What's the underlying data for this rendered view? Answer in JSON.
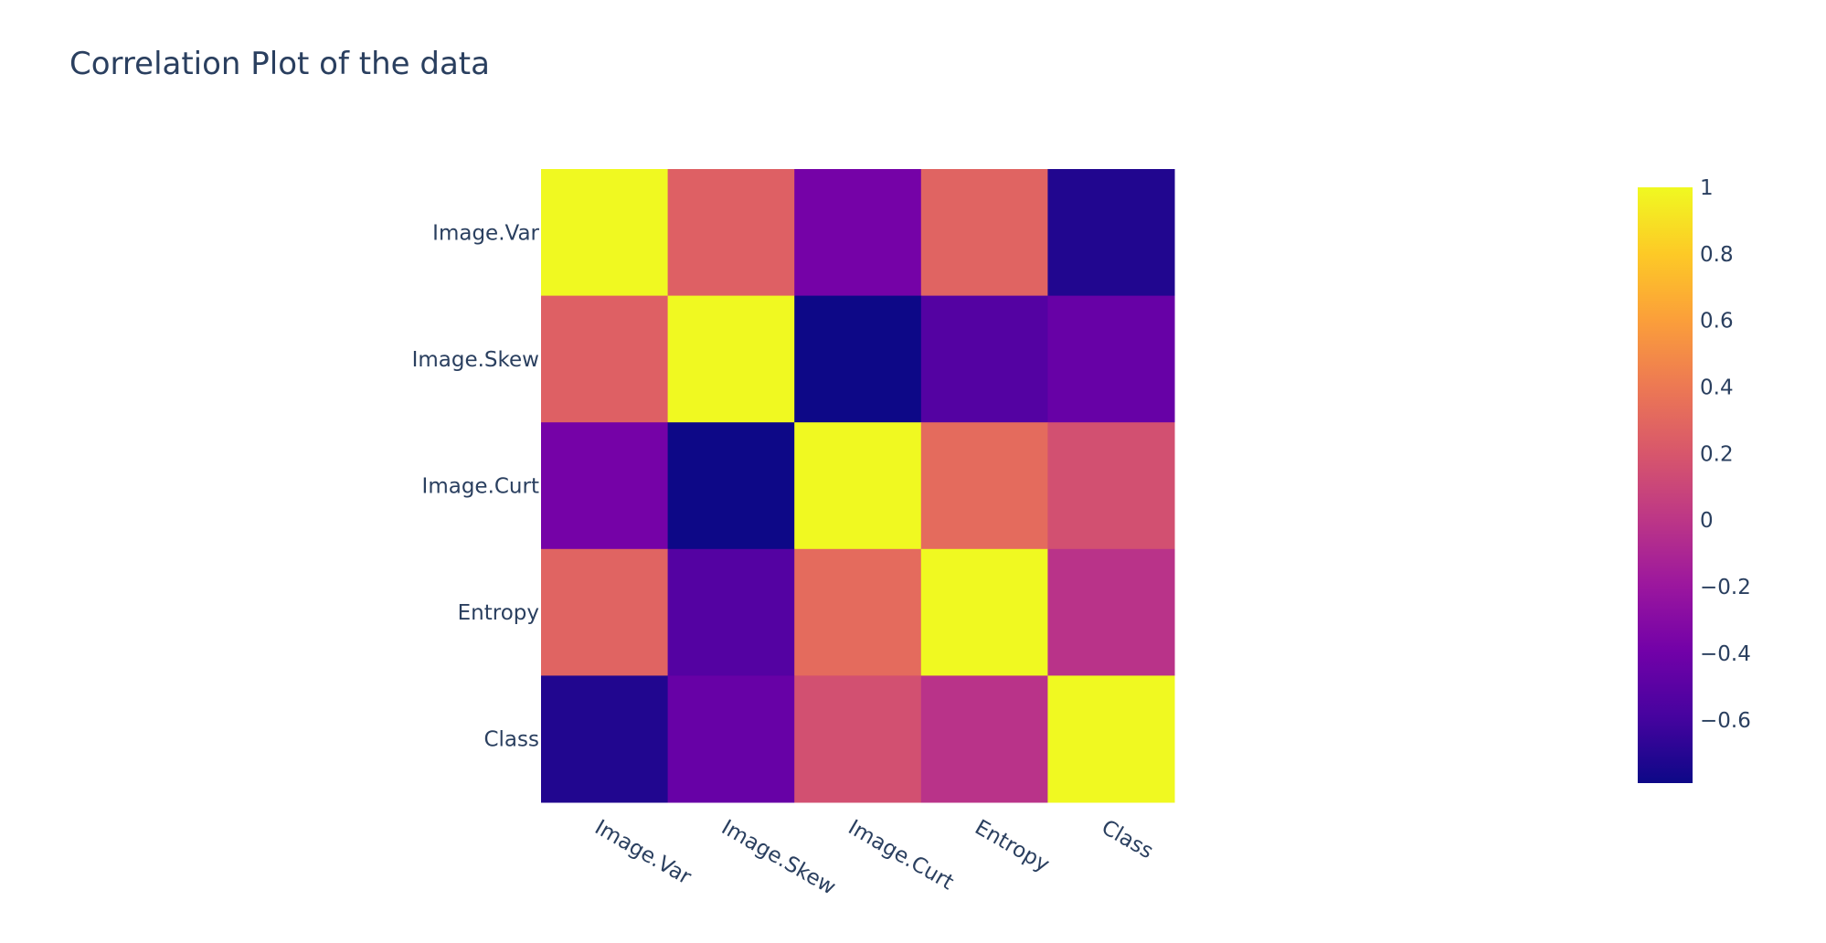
{
  "chart_data": {
    "type": "heatmap",
    "title": "Correlation Plot of the data",
    "x": [
      "Image.Var",
      "Image.Skew",
      "Image.Curt",
      "Entropy",
      "Class"
    ],
    "y": [
      "Image.Var",
      "Image.Skew",
      "Image.Curt",
      "Entropy",
      "Class"
    ],
    "z": [
      [
        1.0,
        0.26,
        -0.38,
        0.28,
        -0.72
      ],
      [
        0.26,
        1.0,
        -0.79,
        -0.53,
        -0.44
      ],
      [
        -0.38,
        -0.79,
        1.0,
        0.32,
        0.16
      ],
      [
        0.28,
        -0.53,
        0.32,
        1.0,
        -0.02
      ],
      [
        -0.72,
        -0.44,
        0.16,
        -0.02,
        1.0
      ]
    ],
    "zmin": -0.79,
    "zmax": 1.0,
    "colorscale": "plasma",
    "colorbar_ticks": [
      {
        "value": 1,
        "label": "1"
      },
      {
        "value": 0.8,
        "label": "0.8"
      },
      {
        "value": 0.6,
        "label": "0.6"
      },
      {
        "value": 0.4,
        "label": "0.4"
      },
      {
        "value": 0.2,
        "label": "0.2"
      },
      {
        "value": 0,
        "label": "0"
      },
      {
        "value": -0.2,
        "label": "−0.2"
      },
      {
        "value": -0.4,
        "label": "−0.4"
      },
      {
        "value": -0.6,
        "label": "−0.6"
      }
    ],
    "colors": [
      "#0d0887",
      "#46039f",
      "#7201a8",
      "#9c179e",
      "#bd3786",
      "#d8576b",
      "#ed7953",
      "#fb9f3a",
      "#fdca26",
      "#f0f921"
    ]
  }
}
